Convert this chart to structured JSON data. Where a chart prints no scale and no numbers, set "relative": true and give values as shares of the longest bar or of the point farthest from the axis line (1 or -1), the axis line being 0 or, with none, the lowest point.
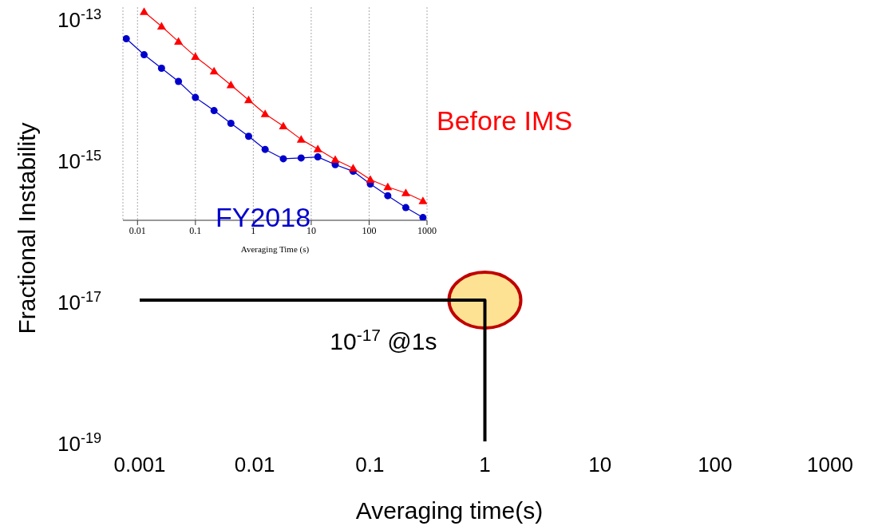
{
  "chart_data": [
    {
      "type": "line",
      "xlabel": "Averaging time(s)",
      "ylabel": "Fractional Instability",
      "log": "xy",
      "xlim": [
        0.001,
        1000
      ],
      "xticks": [
        0.001,
        0.01,
        0.1,
        1,
        10,
        100,
        1000
      ],
      "ylim": [
        1e-19,
        1e-13
      ],
      "yticks": [
        {
          "value": 1e-13,
          "label": "10$^{-13}$"
        },
        {
          "value": 1e-15,
          "label": "10$^{-15}$"
        },
        {
          "value": 1e-17,
          "label": "10$^{-17}$"
        },
        {
          "value": 1e-19,
          "label": "10$^{-19}$"
        }
      ],
      "grid": false,
      "legend": false,
      "series": [
        {
          "color": "#000000",
          "x": [
            0.001,
            1,
            1
          ],
          "values": [
            1e-17,
            1e-17,
            1e-19
          ],
          "marker": "none"
        }
      ],
      "annotations": [
        {
          "text": "10$^{-17}$ @1s",
          "x": 1,
          "y": 1e-17
        }
      ]
    },
    {
      "type": "line",
      "xlabel": "Averaging Time (s)",
      "log": "x",
      "relative": true,
      "xlim": [
        0.0056,
        1000
      ],
      "xticks": [
        0.01,
        0.1,
        1,
        10,
        100,
        1000
      ],
      "grid": "x",
      "legend": false,
      "tick_labels": "x",
      "series": [
        {
          "name": "Before IMS",
          "color": "#ff0000",
          "marker": "triangle",
          "x": [
            0.013,
            0.026,
            0.051,
            0.1,
            0.21,
            0.41,
            0.83,
            1.6,
            3.3,
            6.7,
            13,
            26,
            53,
            105,
            210,
            430,
            850
          ],
          "values": [
            1.0,
            0.93,
            0.857,
            0.785,
            0.715,
            0.649,
            0.577,
            0.51,
            0.452,
            0.388,
            0.342,
            0.291,
            0.25,
            0.195,
            0.16,
            0.131,
            0.093
          ]
        },
        {
          "name": "FY2018",
          "color": "#0000cc",
          "marker": "circle",
          "x": [
            0.0064,
            0.013,
            0.026,
            0.051,
            0.1,
            0.21,
            0.41,
            0.83,
            1.6,
            3.3,
            6.7,
            13,
            26,
            53,
            105,
            210,
            430,
            850
          ],
          "values": [
            0.871,
            0.794,
            0.729,
            0.666,
            0.589,
            0.526,
            0.465,
            0.403,
            0.34,
            0.295,
            0.299,
            0.304,
            0.267,
            0.235,
            0.174,
            0.118,
            0.061,
            0.013
          ]
        }
      ]
    }
  ]
}
